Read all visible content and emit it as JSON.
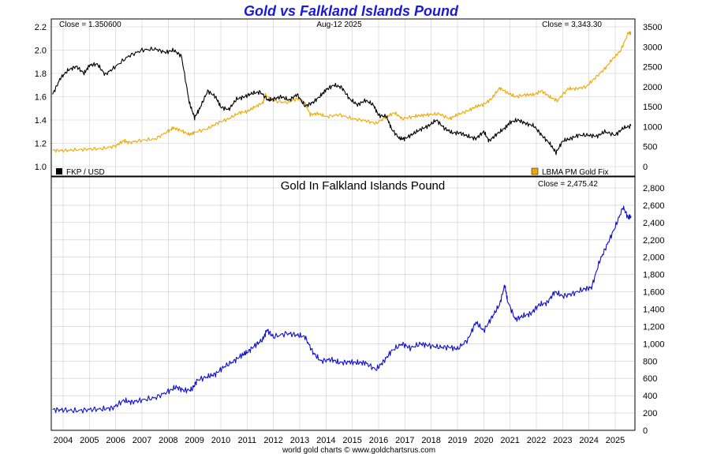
{
  "title": "Gold vs Falkland Islands Pound",
  "footer": "world gold charts © www.goldchartsrus.com",
  "top_panel": {
    "close_left": "Close = 1.350600",
    "date": "Aug-12  2025",
    "close_right": "Close = 3,343.30",
    "legend_left": "FKP / USD",
    "legend_right": "LBMA PM Gold Fix"
  },
  "bottom_panel": {
    "title": "Gold In Falkland Islands Pound",
    "close": "Close = 2,475.42"
  },
  "colors": {
    "fkp": "#000000",
    "gold": "#f0a800",
    "gold_fkp": "#1010d0",
    "title": "#1a1ad6",
    "grid": "#cccccc"
  },
  "chart_data": [
    {
      "type": "line",
      "title": "Gold vs Falkland Islands Pound",
      "grid": true,
      "x_ticks": [
        "2004",
        "2005",
        "2006",
        "2007",
        "2008",
        "2009",
        "2010",
        "2011",
        "2012",
        "2013",
        "2014",
        "2015",
        "2016",
        "2017",
        "2018",
        "2019",
        "2020",
        "2021",
        "2022",
        "2023",
        "2024",
        "2025"
      ],
      "y_left_ticks": [
        "1.0",
        "1.2",
        "1.4",
        "1.6",
        "1.8",
        "2.0",
        "2.2"
      ],
      "y_left_lim": [
        1.0,
        2.2
      ],
      "y_right_ticks": [
        "0",
        "500",
        "1000",
        "1500",
        "2000",
        "2500",
        "3000",
        "3500"
      ],
      "y_right_lim": [
        0,
        3500
      ],
      "series": [
        {
          "name": "FKP / USD",
          "axis": "left",
          "x": [
            2003.6,
            2003.9,
            2004.2,
            2004.5,
            2004.8,
            2005.0,
            2005.3,
            2005.6,
            2006.0,
            2006.5,
            2007.0,
            2007.5,
            2007.9,
            2008.2,
            2008.5,
            2008.8,
            2009.0,
            2009.2,
            2009.5,
            2009.8,
            2010.0,
            2010.3,
            2010.6,
            2010.9,
            2011.2,
            2011.5,
            2011.8,
            2012.0,
            2012.3,
            2012.6,
            2012.9,
            2013.2,
            2013.5,
            2013.8,
            2014.0,
            2014.3,
            2014.6,
            2014.9,
            2015.2,
            2015.5,
            2015.8,
            2016.0,
            2016.3,
            2016.5,
            2016.8,
            2017.0,
            2017.3,
            2017.6,
            2017.9,
            2018.2,
            2018.5,
            2018.8,
            2019.1,
            2019.4,
            2019.7,
            2020.0,
            2020.2,
            2020.5,
            2020.8,
            2021.0,
            2021.3,
            2021.6,
            2021.9,
            2022.2,
            2022.5,
            2022.75,
            2023.0,
            2023.3,
            2023.6,
            2024.0,
            2024.3,
            2024.6,
            2025.0,
            2025.3,
            2025.6
          ],
          "y": [
            1.62,
            1.76,
            1.83,
            1.86,
            1.8,
            1.87,
            1.88,
            1.79,
            1.86,
            1.95,
            2.0,
            2.01,
            1.98,
            2.0,
            1.95,
            1.55,
            1.42,
            1.5,
            1.65,
            1.6,
            1.51,
            1.49,
            1.58,
            1.6,
            1.63,
            1.64,
            1.57,
            1.58,
            1.6,
            1.57,
            1.62,
            1.52,
            1.55,
            1.61,
            1.66,
            1.7,
            1.68,
            1.58,
            1.53,
            1.57,
            1.53,
            1.44,
            1.43,
            1.32,
            1.24,
            1.24,
            1.28,
            1.32,
            1.35,
            1.4,
            1.33,
            1.29,
            1.29,
            1.26,
            1.24,
            1.3,
            1.22,
            1.28,
            1.33,
            1.38,
            1.4,
            1.37,
            1.35,
            1.27,
            1.2,
            1.12,
            1.22,
            1.24,
            1.27,
            1.27,
            1.26,
            1.3,
            1.27,
            1.33,
            1.35
          ]
        },
        {
          "name": "LBMA PM Gold Fix",
          "axis": "right",
          "x": [
            2003.6,
            2004.0,
            2004.5,
            2005.0,
            2005.5,
            2006.0,
            2006.3,
            2006.5,
            2007.0,
            2007.5,
            2008.0,
            2008.2,
            2008.5,
            2008.8,
            2009.0,
            2009.5,
            2009.9,
            2010.3,
            2010.7,
            2011.0,
            2011.3,
            2011.6,
            2011.7,
            2012.0,
            2012.5,
            2012.9,
            2013.2,
            2013.4,
            2013.7,
            2014.0,
            2014.5,
            2015.0,
            2015.5,
            2015.9,
            2016.3,
            2016.6,
            2016.9,
            2017.3,
            2017.6,
            2017.9,
            2018.3,
            2018.7,
            2019.0,
            2019.4,
            2019.7,
            2020.0,
            2020.3,
            2020.6,
            2020.9,
            2021.2,
            2021.6,
            2021.9,
            2022.2,
            2022.5,
            2022.8,
            2023.2,
            2023.5,
            2023.9,
            2024.2,
            2024.6,
            2024.9,
            2025.2,
            2025.5,
            2025.6
          ],
          "y": [
            410,
            400,
            420,
            440,
            450,
            520,
            650,
            600,
            660,
            690,
            890,
            970,
            900,
            800,
            860,
            950,
            1100,
            1200,
            1350,
            1380,
            1500,
            1600,
            1790,
            1650,
            1600,
            1700,
            1600,
            1300,
            1330,
            1250,
            1300,
            1200,
            1150,
            1080,
            1250,
            1350,
            1200,
            1250,
            1280,
            1300,
            1320,
            1200,
            1300,
            1400,
            1500,
            1560,
            1700,
            1970,
            1850,
            1750,
            1800,
            1800,
            1900,
            1750,
            1650,
            1950,
            1950,
            2000,
            2200,
            2450,
            2700,
            2900,
            3350,
            3343
          ]
        }
      ]
    },
    {
      "type": "line",
      "title": "Gold In Falkland Islands Pound",
      "grid": true,
      "x_ticks": [
        "2004",
        "2005",
        "2006",
        "2007",
        "2008",
        "2009",
        "2010",
        "2011",
        "2012",
        "2013",
        "2014",
        "2015",
        "2016",
        "2017",
        "2018",
        "2019",
        "2020",
        "2021",
        "2022",
        "2023",
        "2024",
        "2025"
      ],
      "y_ticks": [
        "0",
        "200",
        "400",
        "600",
        "800",
        "1,000",
        "1,200",
        "1,400",
        "1,600",
        "1,800",
        "2,000",
        "2,200",
        "2,400",
        "2,600",
        "2,800"
      ],
      "ylim": [
        0,
        2800
      ],
      "series": [
        {
          "name": "Gold In Falkland Islands Pound",
          "x": [
            2003.6,
            2004.0,
            2004.5,
            2005.0,
            2005.5,
            2005.9,
            2006.3,
            2006.6,
            2007.0,
            2007.5,
            2008.0,
            2008.3,
            2008.6,
            2008.9,
            2009.1,
            2009.5,
            2009.8,
            2010.1,
            2010.5,
            2010.8,
            2011.0,
            2011.3,
            2011.6,
            2011.75,
            2012.0,
            2012.5,
            2012.9,
            2013.2,
            2013.5,
            2013.8,
            2014.2,
            2014.5,
            2014.9,
            2015.2,
            2015.5,
            2015.9,
            2016.2,
            2016.5,
            2016.9,
            2017.2,
            2017.6,
            2017.9,
            2018.3,
            2018.7,
            2019.0,
            2019.4,
            2019.7,
            2020.0,
            2020.3,
            2020.6,
            2020.8,
            2020.9,
            2021.2,
            2021.5,
            2021.8,
            2022.1,
            2022.4,
            2022.7,
            2023.0,
            2023.4,
            2023.8,
            2024.1,
            2024.4,
            2024.7,
            2025.0,
            2025.3,
            2025.5,
            2025.6
          ],
          "y": [
            240,
            235,
            225,
            240,
            245,
            260,
            345,
            325,
            350,
            375,
            450,
            500,
            460,
            470,
            580,
            620,
            650,
            730,
            800,
            870,
            900,
            980,
            1050,
            1160,
            1080,
            1120,
            1100,
            1080,
            900,
            800,
            820,
            780,
            790,
            780,
            780,
            700,
            800,
            920,
            1000,
            950,
            1000,
            980,
            960,
            960,
            940,
            1050,
            1250,
            1150,
            1300,
            1450,
            1680,
            1500,
            1280,
            1320,
            1350,
            1450,
            1470,
            1600,
            1550,
            1580,
            1630,
            1650,
            1950,
            2150,
            2350,
            2580,
            2450,
            2475
          ]
        }
      ]
    }
  ]
}
